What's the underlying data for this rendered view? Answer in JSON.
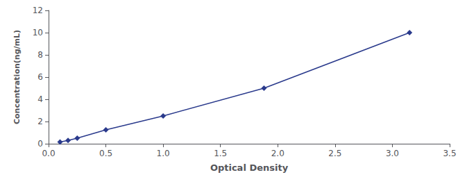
{
  "chart_data": {
    "type": "line",
    "xlabel": "Optical Density",
    "ylabel": "Concentration(ng/mL)",
    "x": [
      0.1,
      0.17,
      0.25,
      0.5,
      1.0,
      1.88,
      3.15
    ],
    "values": [
      0.156,
      0.3,
      0.5,
      1.25,
      2.5,
      5.0,
      10.0
    ],
    "color": "#2a3a8c",
    "marker": "diamond",
    "xlim": [
      0.0,
      3.5
    ],
    "ylim": [
      0,
      12
    ],
    "xticks": [
      {
        "value": 0.0,
        "label": "0.0"
      },
      {
        "value": 0.5,
        "label": "0.5"
      },
      {
        "value": 1.0,
        "label": "1.0"
      },
      {
        "value": 1.5,
        "label": "1.5"
      },
      {
        "value": 2.0,
        "label": "2.0"
      },
      {
        "value": 2.5,
        "label": "2.5"
      },
      {
        "value": 3.0,
        "label": "3.0"
      },
      {
        "value": 3.5,
        "label": "3.5"
      }
    ],
    "yticks": [
      0,
      2,
      4,
      6,
      8,
      10,
      12
    ],
    "grid": false
  }
}
